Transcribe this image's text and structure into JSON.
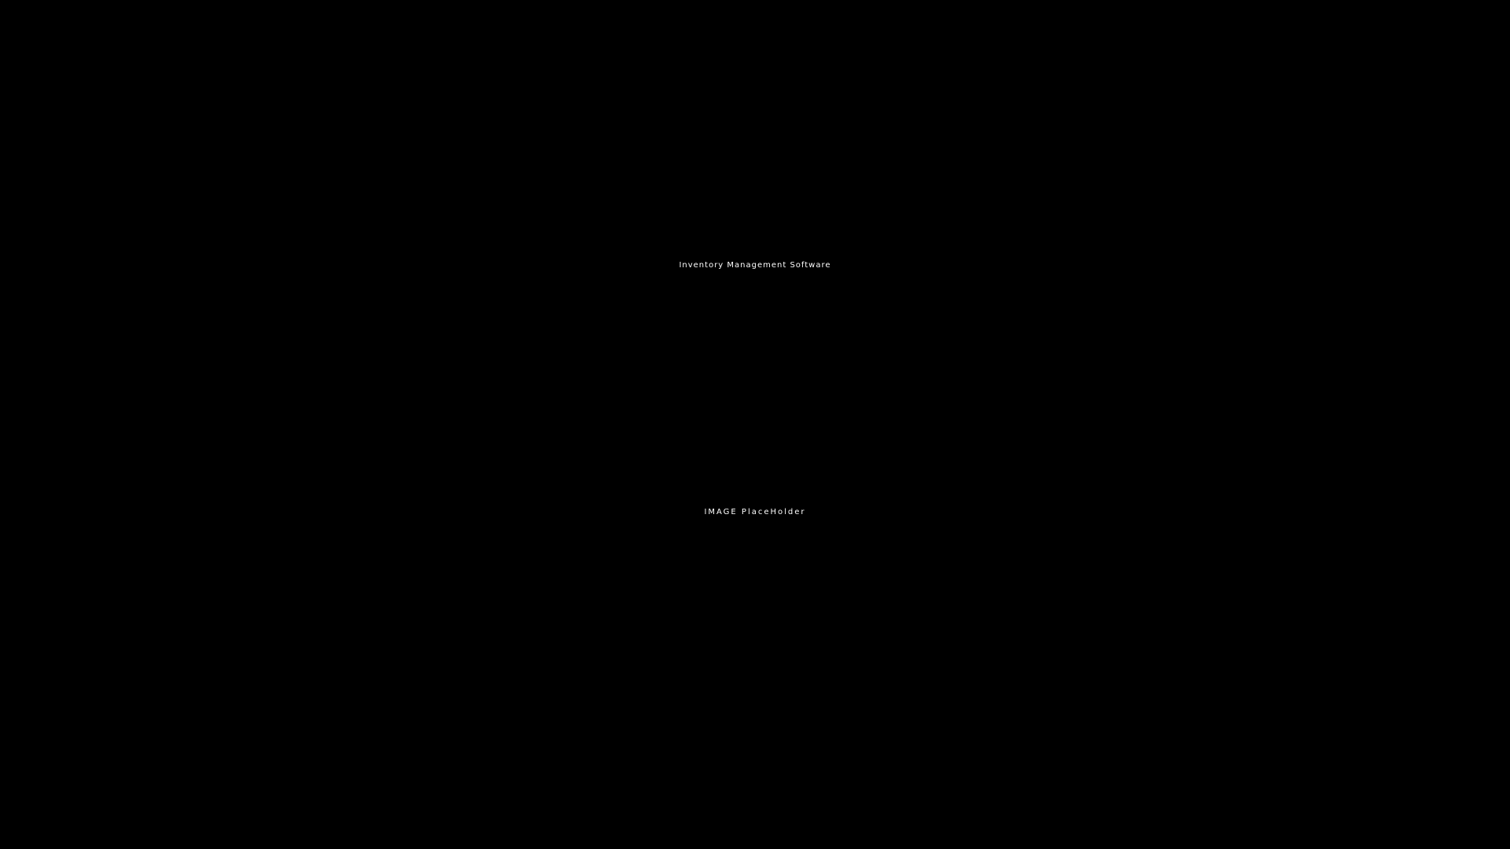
{
  "title": "Inventory Management Software",
  "placeholder": "IMAGE PlaceHolder",
  "colors": {
    "background": "#000000",
    "text": "#ffffff"
  }
}
